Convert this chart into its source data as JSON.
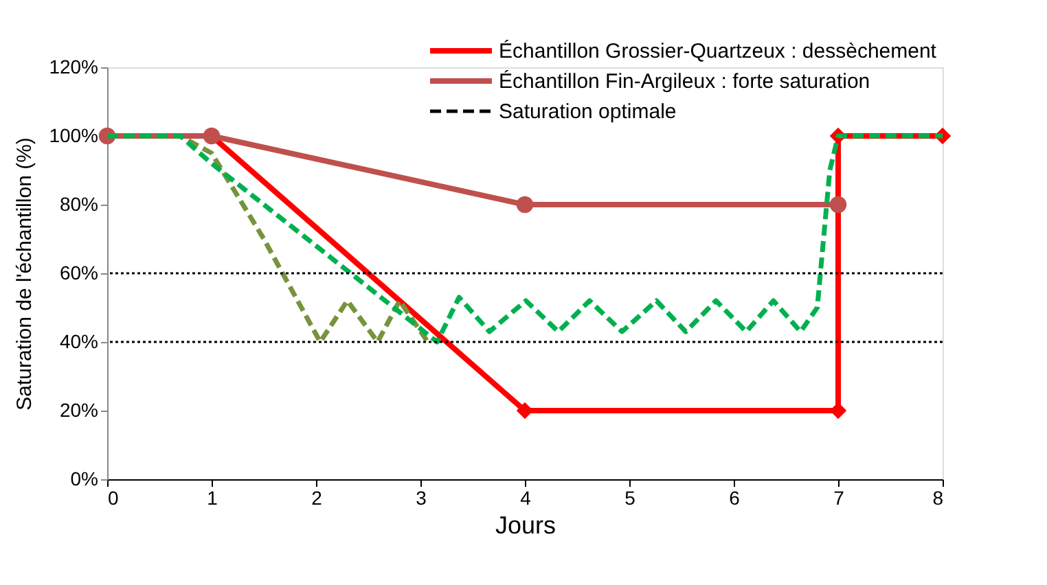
{
  "chart_data": {
    "type": "line",
    "xlabel": "Jours",
    "ylabel": "Saturation de l'échantillon (%)",
    "xlim": [
      0,
      8
    ],
    "xticks": [
      0,
      1,
      2,
      3,
      4,
      5,
      6,
      7,
      8
    ],
    "ylim": [
      0,
      120
    ],
    "yticks": [
      {
        "value": 0,
        "label": "0%"
      },
      {
        "value": 20,
        "label": "20%"
      },
      {
        "value": 40,
        "label": "40%"
      },
      {
        "value": 60,
        "label": "60%"
      },
      {
        "value": 80,
        "label": "80%"
      },
      {
        "value": 100,
        "label": "100%"
      },
      {
        "value": 120,
        "label": "120%"
      }
    ],
    "grid": false,
    "legend": "top right",
    "series": [
      {
        "name": "Échantillon Grossier-Quartzeux : dessèchement",
        "color": "#ff0000",
        "marker": "diamond",
        "line_style": "solid",
        "x": [
          0,
          1,
          4,
          7,
          7,
          8
        ],
        "values": [
          100,
          100,
          20,
          20,
          100,
          100
        ]
      },
      {
        "name": "Échantillon Fin-Argileux : forte saturation",
        "color": "#c0504d",
        "marker": "circle",
        "line_style": "solid",
        "x": [
          0,
          1,
          4,
          7
        ],
        "values": [
          100,
          100,
          80,
          80
        ]
      },
      {
        "color": "#77933c",
        "marker": "none",
        "line_style": "dashed",
        "x": [
          0,
          0.7,
          1,
          1.5,
          2.04,
          2.3,
          2.59,
          2.8,
          3.07
        ],
        "values": [
          100,
          100,
          95,
          70,
          40,
          52,
          40,
          52,
          40
        ]
      },
      {
        "color": "#00b050",
        "marker": "none",
        "line_style": "dashed",
        "x": [
          0,
          0.7,
          1,
          2,
          3.16,
          3.37,
          3.66,
          4.01,
          4.32,
          4.62,
          4.93,
          5.26,
          5.54,
          5.83,
          6.12,
          6.38,
          6.64,
          6.8,
          6.92,
          7,
          8
        ],
        "values": [
          100,
          100,
          92,
          68,
          40,
          53,
          43,
          52,
          43,
          52,
          43,
          52,
          43,
          52,
          43,
          52,
          43,
          50,
          90,
          100,
          100
        ]
      }
    ],
    "ref_lines": [
      {
        "axis": "y",
        "value": 60,
        "label": "Saturation optimale",
        "color": "#000000",
        "line_style": "dotted"
      },
      {
        "axis": "y",
        "value": 40,
        "color": "#000000",
        "line_style": "dotted"
      }
    ]
  }
}
